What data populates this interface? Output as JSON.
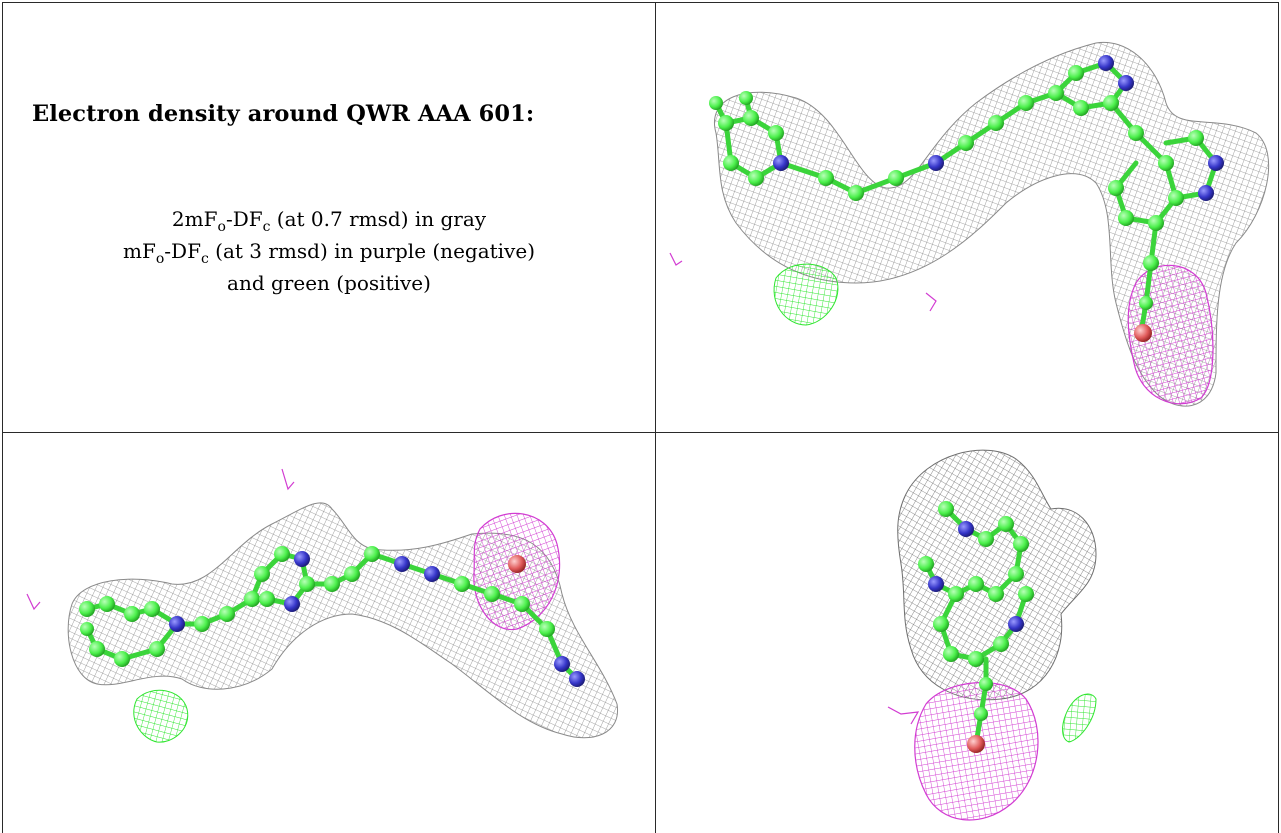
{
  "title": "Electron density around QWR AAA 601:",
  "legend": {
    "line1": {
      "prefix": "2mF",
      "sub1": "o",
      "mid": "-DF",
      "sub2": "c",
      "suffix": " (at 0.7 rmsd) in gray"
    },
    "line2": {
      "prefix": "mF",
      "sub1": "o",
      "mid": "-DF",
      "sub2": "c",
      "suffix": " (at 3 rmsd) in purple (negative)"
    },
    "line3": {
      "text": "and green (positive)"
    }
  },
  "colors": {
    "mesh_gray": "#8a8a8a",
    "mesh_purple": "#d23cd2",
    "mesh_green": "#2ee62e",
    "carbon": "#4cf04c",
    "nitrogen": "#3535c8",
    "oxygen": "#e05a5a",
    "border": "#2a2a2a"
  },
  "views": [
    {
      "name": "view-top-right",
      "description_icon": "density-mesh-view-1"
    },
    {
      "name": "view-bottom-left",
      "description_icon": "density-mesh-view-2"
    },
    {
      "name": "view-bottom-right",
      "description_icon": "density-mesh-view-3"
    }
  ]
}
